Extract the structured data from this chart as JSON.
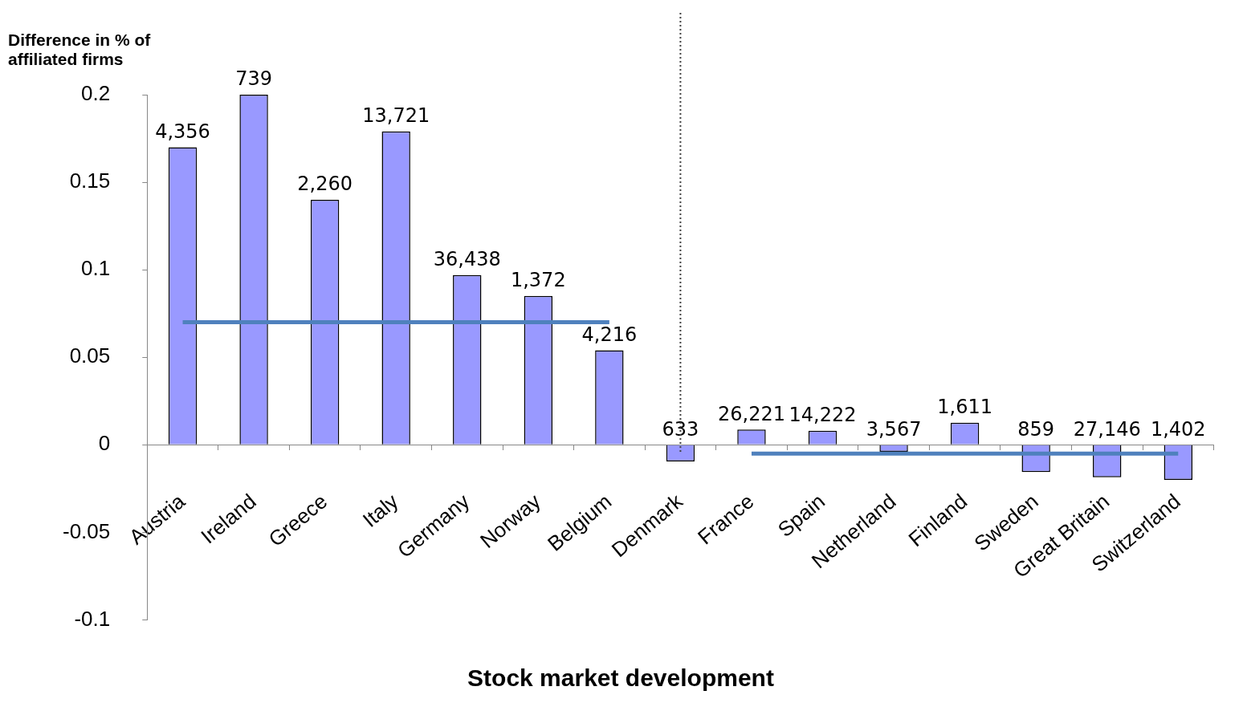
{
  "chart_data": {
    "type": "bar",
    "ylabel": "Difference in % of affiliated firms",
    "xlabel": "Stock market development",
    "categories": [
      "Austria",
      "Ireland",
      "Greece",
      "Italy",
      "Germany",
      "Norway",
      "Belgium",
      "Denmark",
      "France",
      "Spain",
      "Netherland",
      "Finland",
      "Sweden",
      "Great Britain",
      "Switzerland"
    ],
    "series": [
      {
        "color": "#9999ff",
        "values": [
          0.17,
          0.2,
          0.14,
          0.179,
          0.097,
          0.085,
          0.054,
          -0.0095,
          0.0087,
          0.008,
          -0.004,
          0.0126,
          -0.0156,
          -0.0186,
          -0.02
        ]
      },
      {
        "type": "line",
        "color": "#4f81bd",
        "values": [
          0.07,
          0.07,
          0.07,
          0.07,
          0.07,
          0.07,
          0.07,
          null,
          null,
          null,
          null,
          null,
          null,
          null,
          null
        ]
      },
      {
        "type": "line",
        "color": "#4f81bd",
        "values": [
          null,
          null,
          null,
          null,
          null,
          null,
          null,
          null,
          -0.005,
          -0.005,
          -0.005,
          -0.005,
          -0.005,
          -0.005,
          -0.005
        ]
      }
    ],
    "ylim": [
      -0.1,
      0.2
    ],
    "yticks": [
      -0.1,
      -0.05,
      0,
      0.05,
      0.1,
      0.15,
      0.2
    ],
    "ref_lines": [
      {
        "axis": "x",
        "value": "Denmark",
        "color": "#404040",
        "line_style": "dotted"
      }
    ],
    "annotations": [
      {
        "text": "4,356",
        "x": "Austria",
        "y": 0.17
      },
      {
        "text": "739",
        "x": "Ireland",
        "y": 0.2
      },
      {
        "text": "2,260",
        "x": "Greece",
        "y": 0.14
      },
      {
        "text": "13,721",
        "x": "Italy",
        "y": 0.179
      },
      {
        "text": "36,438",
        "x": "Germany",
        "y": 0.097
      },
      {
        "text": "1,372",
        "x": "Norway",
        "y": 0.085
      },
      {
        "text": "4,216",
        "x": "Belgium",
        "y": 0.054
      },
      {
        "text": "633",
        "x": "Denmark",
        "y": -0.0095
      },
      {
        "text": "26,221",
        "x": "France",
        "y": 0.0087
      },
      {
        "text": "14,222",
        "x": "Spain",
        "y": 0.008
      },
      {
        "text": "3,567",
        "x": "Netherland",
        "y": -0.004
      },
      {
        "text": "1,611",
        "x": "Finland",
        "y": 0.0126
      },
      {
        "text": "859",
        "x": "Sweden",
        "y": -0.0156
      },
      {
        "text": "27,146",
        "x": "Great Britain",
        "y": -0.0186
      },
      {
        "text": "1,402",
        "x": "Switzerland",
        "y": -0.02
      }
    ],
    "grid": false,
    "legend": false
  }
}
